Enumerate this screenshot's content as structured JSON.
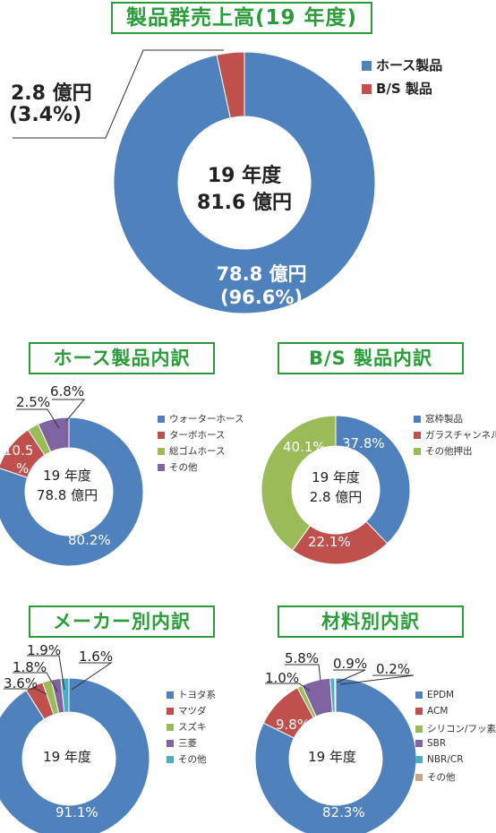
{
  "colors": {
    "blue": "#4f81bd",
    "red": "#c0504d",
    "green": "#9bbb59",
    "purple": "#8064a2",
    "teal": "#4bacc6",
    "tan": "#c4a484",
    "title": "#2a9d3a"
  },
  "main": {
    "title": "製品群売上高(19 年度)",
    "center_line1": "19 年度",
    "center_line2": "81.6 億円",
    "callout_value": "2.8 億円",
    "callout_pct": "(3.4%)",
    "slice_value": "78.8 億円",
    "slice_pct": "(96.6%)",
    "legend": [
      "ホース製品",
      "B/S 製品"
    ]
  },
  "hose": {
    "title": "ホース製品内訳",
    "center_line1": "19 年度",
    "center_line2": "78.8 億円",
    "legend": [
      "ウォーターホース",
      "ターボホース",
      "総ゴムホース",
      "その他"
    ],
    "labels": [
      "80.2%",
      "10.5",
      "%",
      "2.5%",
      "6.8%"
    ]
  },
  "bs": {
    "title": "B/S 製品内訳",
    "center_line1": "19 年度",
    "center_line2": "2.8 億円",
    "legend": [
      "窓枠製品",
      "ガラスチャンネル",
      "その他押出"
    ],
    "labels": [
      "37.8%",
      "22.1%",
      "40.1%"
    ]
  },
  "maker": {
    "title": "メーカー別内訳",
    "center": "19 年度",
    "legend": [
      "トヨタ系",
      "マツダ",
      "スズキ",
      "三菱",
      "その他"
    ],
    "labels": [
      "91.1%",
      "3.6%",
      "1.8%",
      "1.9%",
      "1.6%"
    ]
  },
  "material": {
    "title": "材料別内訳",
    "center": "19 年度",
    "legend": [
      "EPDM",
      "ACM",
      "シリコン/フッ素",
      "SBR",
      "NBR/CR",
      "その他"
    ],
    "labels": [
      "82.3%",
      "9.8%",
      "1.0%",
      "5.8%",
      "0.9%",
      "0.2%"
    ]
  },
  "chart_data": [
    {
      "type": "pie",
      "title": "製品群売上高(19 年度)",
      "categories": [
        "ホース製品",
        "B/S 製品"
      ],
      "values": [
        96.6,
        3.4
      ],
      "amounts": [
        78.8,
        2.8
      ],
      "unit": "億円",
      "total": 81.6,
      "legend_position": "top-right"
    },
    {
      "type": "pie",
      "title": "ホース製品内訳",
      "categories": [
        "ウォーターホース",
        "ターボホース",
        "総ゴムホース",
        "その他"
      ],
      "values": [
        80.2,
        10.5,
        2.5,
        6.8
      ],
      "legend_position": "right"
    },
    {
      "type": "pie",
      "title": "B/S 製品内訳",
      "categories": [
        "窓枠製品",
        "ガラスチャンネル",
        "その他押出"
      ],
      "values": [
        37.8,
        22.1,
        40.1
      ],
      "legend_position": "right"
    },
    {
      "type": "pie",
      "title": "メーカー別内訳",
      "categories": [
        "トヨタ系",
        "マツダ",
        "スズキ",
        "三菱",
        "その他"
      ],
      "values": [
        91.1,
        3.6,
        1.8,
        1.9,
        1.6
      ],
      "legend_position": "right"
    },
    {
      "type": "pie",
      "title": "材料別内訳",
      "categories": [
        "EPDM",
        "ACM",
        "シリコン/フッ素",
        "SBR",
        "NBR/CR",
        "その他"
      ],
      "values": [
        82.3,
        9.8,
        1.0,
        5.8,
        0.9,
        0.2
      ],
      "legend_position": "right"
    }
  ]
}
